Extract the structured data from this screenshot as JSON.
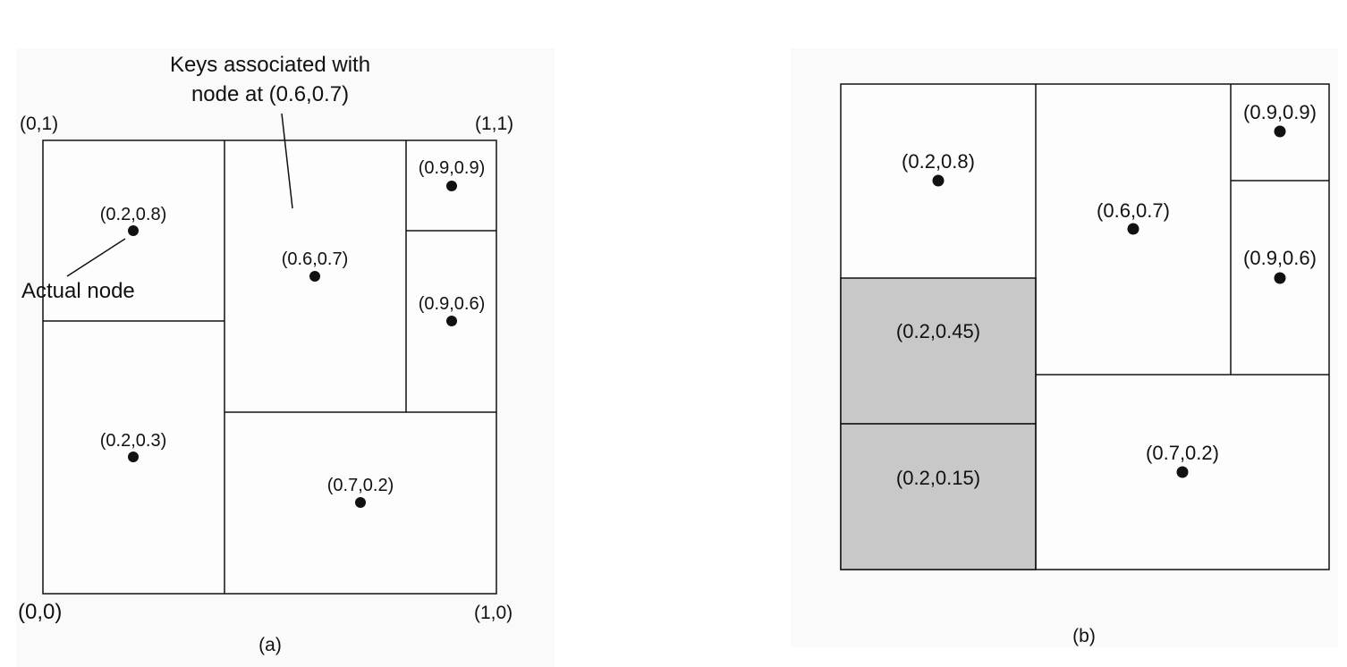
{
  "panel_a": {
    "callout_keys_line1": "Keys associated with",
    "callout_keys_line2": "node at (0.6,0.7)",
    "corner_top_left": "(0,1)",
    "corner_top_right": "(1,1)",
    "corner_bottom_left": "(0,0)",
    "corner_bottom_right": "(1,0)",
    "callout_actual_node": "Actual node",
    "caption": "(a)",
    "nodes": [
      {
        "label": "(0.2,0.8)"
      },
      {
        "label": "(0.6,0.7)"
      },
      {
        "label": "(0.9,0.9)"
      },
      {
        "label": "(0.9,0.6)"
      },
      {
        "label": "(0.2,0.3)"
      },
      {
        "label": "(0.7,0.2)"
      }
    ]
  },
  "panel_b": {
    "caption": "(b)",
    "nodes": [
      {
        "label": "(0.2,0.8)"
      },
      {
        "label": "(0.6,0.7)"
      },
      {
        "label": "(0.9,0.9)"
      },
      {
        "label": "(0.9,0.6)"
      },
      {
        "label": "(0.7,0.2)"
      }
    ],
    "shaded_regions": [
      {
        "label": "(0.2,0.45)"
      },
      {
        "label": "(0.2,0.15)"
      }
    ],
    "colors": {
      "shaded_fill": "#c8c8c8"
    }
  },
  "colors": {
    "background": "#fcfcfc",
    "line": "#111111"
  }
}
